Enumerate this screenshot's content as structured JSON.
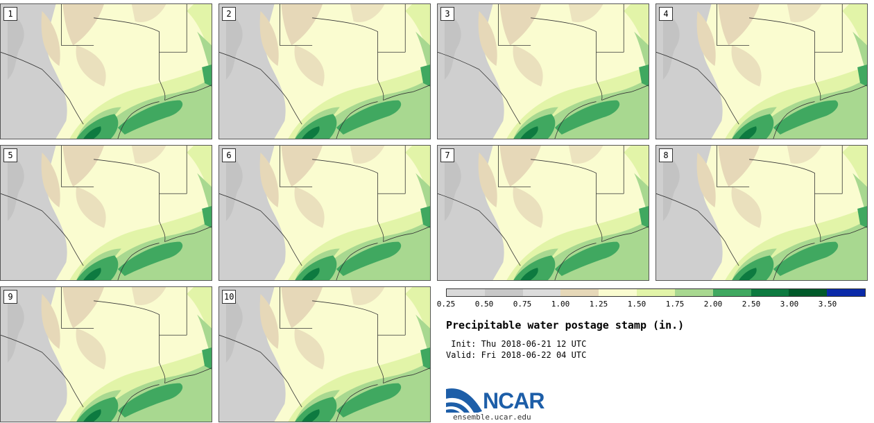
{
  "stamps": [
    {
      "number": "1"
    },
    {
      "number": "2"
    },
    {
      "number": "3"
    },
    {
      "number": "4"
    },
    {
      "number": "5"
    },
    {
      "number": "6"
    },
    {
      "number": "7"
    },
    {
      "number": "8"
    },
    {
      "number": "9"
    },
    {
      "number": "10"
    }
  ],
  "colorbar": {
    "colors": [
      "#d9d9d9",
      "#c8c8c8",
      "#dcdcdc",
      "#e6d8b8",
      "#fafcd0",
      "#e2f4a8",
      "#a8d890",
      "#40a860",
      "#0d7a40",
      "#005a2a",
      "#0a2aa8"
    ],
    "labels": [
      "0.25",
      "0.50",
      "0.75",
      "1.00",
      "1.25",
      "1.50",
      "1.75",
      "2.00",
      "2.50",
      "3.00",
      "3.50"
    ]
  },
  "title": "Precipitable water postage stamp (in.)",
  "init": " Init: Thu 2018-06-21 12 UTC",
  "valid": "Valid: Fri 2018-06-22 04 UTC",
  "logo": {
    "text": "NCAR",
    "site": "ensemble.ucar.edu"
  }
}
